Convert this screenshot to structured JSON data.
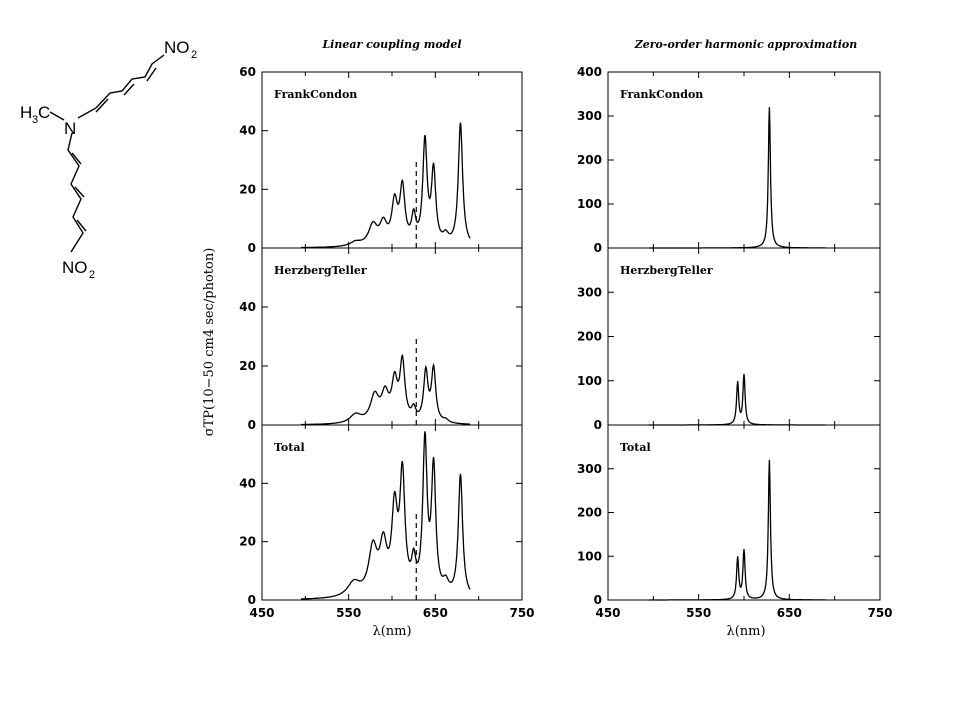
{
  "molecule": {
    "amine": "N",
    "methyl": "H",
    "methyl_sub": "3",
    "methyl_c": "C",
    "nitro_top": "NO",
    "nitro_top_sub": "2",
    "nitro_bottom": "NO",
    "nitro_bottom_sub": "2"
  },
  "chart_data": [
    {
      "type": "line",
      "title": "Linear coupling model",
      "xlabel": "λ(nm)",
      "ylabel": "σTP(10−50 cm4 sec/photon)",
      "xlim": [
        450,
        750
      ],
      "x_ticks": [
        450,
        550,
        650,
        750
      ],
      "panels": [
        {
          "label": "FrankCondon",
          "ylim": [
            0,
            60
          ],
          "y_ticks": [
            0,
            20,
            40,
            60
          ],
          "dashed_x": 628,
          "dashed_top": 30,
          "peaks": [
            [
              558,
              1.5,
              8
            ],
            [
              578,
              7,
              6
            ],
            [
              590,
              7,
              5
            ],
            [
              603,
              14,
              4
            ],
            [
              612,
              19,
              3.5
            ],
            [
              625,
              9,
              3
            ],
            [
              638,
              35,
              3
            ],
            [
              648,
              25,
              3
            ],
            [
              662,
              3,
              4
            ],
            [
              679,
              42,
              3
            ]
          ]
        },
        {
          "label": "HerzbergTeller",
          "ylim": [
            0,
            60
          ],
          "y_ticks": [
            0,
            20,
            40
          ],
          "dashed_x": 628,
          "dashed_top": 30,
          "peaks": [
            [
              558,
              3,
              8
            ],
            [
              580,
              9,
              6
            ],
            [
              592,
              9,
              5
            ],
            [
              603,
              13,
              4
            ],
            [
              612,
              20,
              3.5
            ],
            [
              625,
              4,
              3
            ],
            [
              639,
              17,
              3
            ],
            [
              648,
              18,
              3
            ],
            [
              662,
              1,
              4
            ]
          ]
        },
        {
          "label": "Total",
          "ylim": [
            0,
            60
          ],
          "y_ticks": [
            0,
            20,
            40
          ],
          "dashed_x": 628,
          "dashed_top": 30,
          "peaks": [
            [
              556,
              5,
              9
            ],
            [
              578,
              16,
              6
            ],
            [
              590,
              16,
              5
            ],
            [
              603,
              28,
              4
            ],
            [
              612,
              40,
              3.5
            ],
            [
              625,
              10,
              3
            ],
            [
              638,
              52,
              3
            ],
            [
              648,
              43,
              3
            ],
            [
              662,
              4,
              4
            ],
            [
              679,
              42,
              3
            ]
          ]
        }
      ]
    },
    {
      "type": "line",
      "title": "Zero-order harmonic approximation",
      "xlabel": "λ(nm)",
      "ylabel": "",
      "xlim": [
        450,
        750
      ],
      "x_ticks": [
        450,
        550,
        650,
        750
      ],
      "panels": [
        {
          "label": "FrankCondon",
          "ylim": [
            0,
            400
          ],
          "y_ticks": [
            0,
            100,
            200,
            300,
            400
          ],
          "peaks": [
            [
              628,
              320,
              1.4
            ]
          ]
        },
        {
          "label": "HerzbergTeller",
          "ylim": [
            0,
            400
          ],
          "y_ticks": [
            0,
            100,
            200,
            300
          ],
          "peaks": [
            [
              593,
              95,
              1.4
            ],
            [
              600,
              112,
              1.4
            ]
          ]
        },
        {
          "label": "Total",
          "ylim": [
            0,
            400
          ],
          "y_ticks": [
            0,
            100,
            200,
            300
          ],
          "peaks": [
            [
              593,
              95,
              1.4
            ],
            [
              600,
              112,
              1.4
            ],
            [
              628,
              320,
              1.4
            ]
          ]
        }
      ]
    }
  ]
}
